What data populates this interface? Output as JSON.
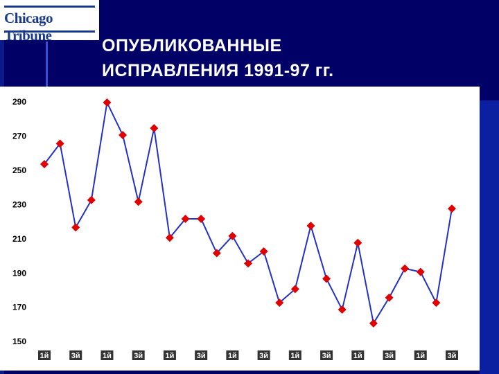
{
  "logo": "Chicago Tribune",
  "chart_data": {
    "type": "line",
    "title": "ОПУБЛИКОВАННЫЕ\nИСПРАВЛЕНИЯ 1991-97 гг.",
    "categories": [
      "1й",
      null,
      "3й",
      null,
      "1й",
      null,
      "3й",
      null,
      "1й",
      null,
      "3й",
      null,
      "1й",
      null,
      "3й",
      null,
      "1й",
      null,
      "3й",
      null,
      "1й",
      null,
      "3й",
      null,
      "1й",
      null,
      "3й"
    ],
    "series": [
      {
        "name": "Исправления",
        "color": "#2030c8",
        "marker_color": "#e00000",
        "values": [
          254,
          266,
          217,
          233,
          290,
          271,
          232,
          275,
          211,
          222,
          222,
          202,
          212,
          196,
          203,
          173,
          181,
          218,
          187,
          169,
          208,
          161,
          176,
          193,
          191,
          173,
          228
        ]
      }
    ],
    "ylim": [
      150,
      290
    ],
    "yticks": [
      150,
      170,
      190,
      210,
      230,
      250,
      270,
      290
    ],
    "grid": false,
    "legend": false
  }
}
